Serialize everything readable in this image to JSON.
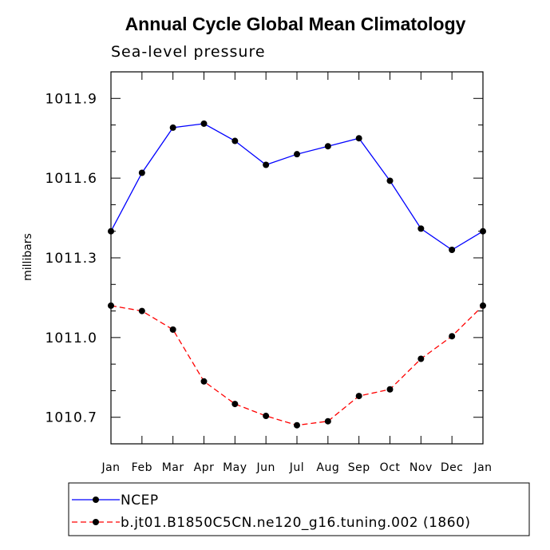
{
  "chart_data": {
    "type": "line",
    "title": "Annual Cycle Global Mean Climatology",
    "subtitle": "Sea-level pressure",
    "xlabel": "",
    "ylabel": "millibars",
    "categories": [
      "Jan",
      "Feb",
      "Mar",
      "Apr",
      "May",
      "Jun",
      "Jul",
      "Aug",
      "Sep",
      "Oct",
      "Nov",
      "Dec",
      "Jan"
    ],
    "yticks": [
      "1010.7",
      "1011.0",
      "1011.3",
      "1011.6",
      "1011.9"
    ],
    "ylim": [
      1010.6,
      1012.0
    ],
    "grid": false,
    "legend_position": "bottom",
    "series": [
      {
        "name": "NCEP",
        "color": "#0000ff",
        "dash": "solid",
        "values": [
          1011.4,
          1011.62,
          1011.79,
          1011.805,
          1011.74,
          1011.65,
          1011.69,
          1011.72,
          1011.75,
          1011.59,
          1011.41,
          1011.33,
          1011.4
        ]
      },
      {
        "name": "b.jt01.B1850C5CN.ne120_g16.tuning.002 (1860)",
        "color": "#ff0000",
        "dash": "dashed",
        "values": [
          1011.12,
          1011.1,
          1011.03,
          1010.835,
          1010.75,
          1010.705,
          1010.67,
          1010.685,
          1010.78,
          1010.805,
          1010.92,
          1011.005,
          1011.12
        ]
      }
    ]
  }
}
